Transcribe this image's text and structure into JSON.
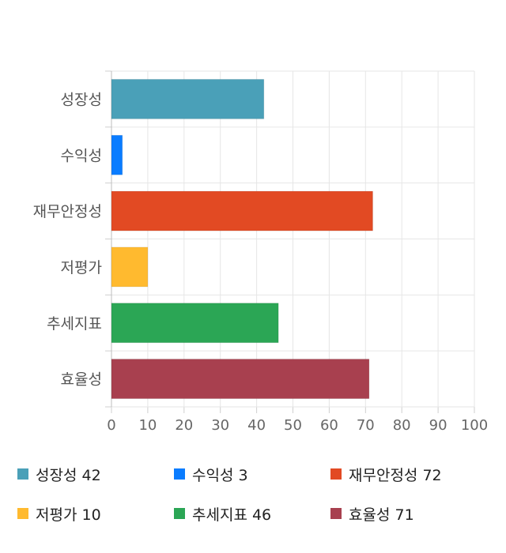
{
  "chart_data": {
    "type": "bar",
    "orientation": "horizontal",
    "categories": [
      "성장성",
      "수익성",
      "재무안정성",
      "저평가",
      "추세지표",
      "효율성"
    ],
    "values": [
      42,
      3,
      72,
      10,
      46,
      71
    ],
    "colors": [
      "#4aa0b8",
      "#0a7cff",
      "#e24a23",
      "#ffba2f",
      "#2ba655",
      "#a8404f"
    ],
    "xlim": [
      0,
      100
    ],
    "xticks": [
      "0",
      "10",
      "20",
      "30",
      "40",
      "50",
      "60",
      "70",
      "80",
      "90",
      "100"
    ],
    "grid": true,
    "legend_position": "bottom"
  },
  "legend": {
    "items": [
      {
        "label": "성장성 42",
        "color": "#4aa0b8"
      },
      {
        "label": "수익성 3",
        "color": "#0a7cff"
      },
      {
        "label": "재무안정성 72",
        "color": "#e24a23"
      },
      {
        "label": "저평가 10",
        "color": "#ffba2f"
      },
      {
        "label": "추세지표 46",
        "color": "#2ba655"
      },
      {
        "label": "효율성 71",
        "color": "#a8404f"
      }
    ]
  }
}
